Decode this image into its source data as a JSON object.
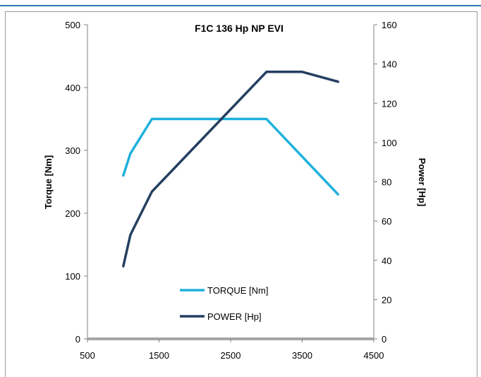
{
  "chart_data": {
    "type": "line",
    "title": "F1C 136 Hp NP  EVI",
    "xlabel": "",
    "ylabel": "Torque [Nm]",
    "y2label": "Power [Hp]",
    "xlim": [
      500,
      4500
    ],
    "ylim": [
      0,
      500
    ],
    "y2lim": [
      0,
      160
    ],
    "x_ticks": [
      "500",
      "1500",
      "2500",
      "3500",
      "4500"
    ],
    "y_ticks": [
      "0",
      "100",
      "200",
      "300",
      "400",
      "500"
    ],
    "y2_ticks": [
      "0",
      "20",
      "40",
      "60",
      "80",
      "100",
      "120",
      "140",
      "160"
    ],
    "legend_position": "lower-center",
    "series": [
      {
        "name": "TORQUE [Nm]",
        "axis": "left",
        "color": "#1fb1dc",
        "x": [
          1000,
          1100,
          1400,
          3000,
          4000
        ],
        "y": [
          260,
          295,
          350,
          350,
          230
        ]
      },
      {
        "name": "POWER [Hp]",
        "axis": "right",
        "color": "#243f60",
        "x": [
          1000,
          1100,
          1400,
          3000,
          3500,
          4000
        ],
        "y": [
          37,
          53,
          75,
          136,
          136,
          131
        ]
      }
    ]
  }
}
